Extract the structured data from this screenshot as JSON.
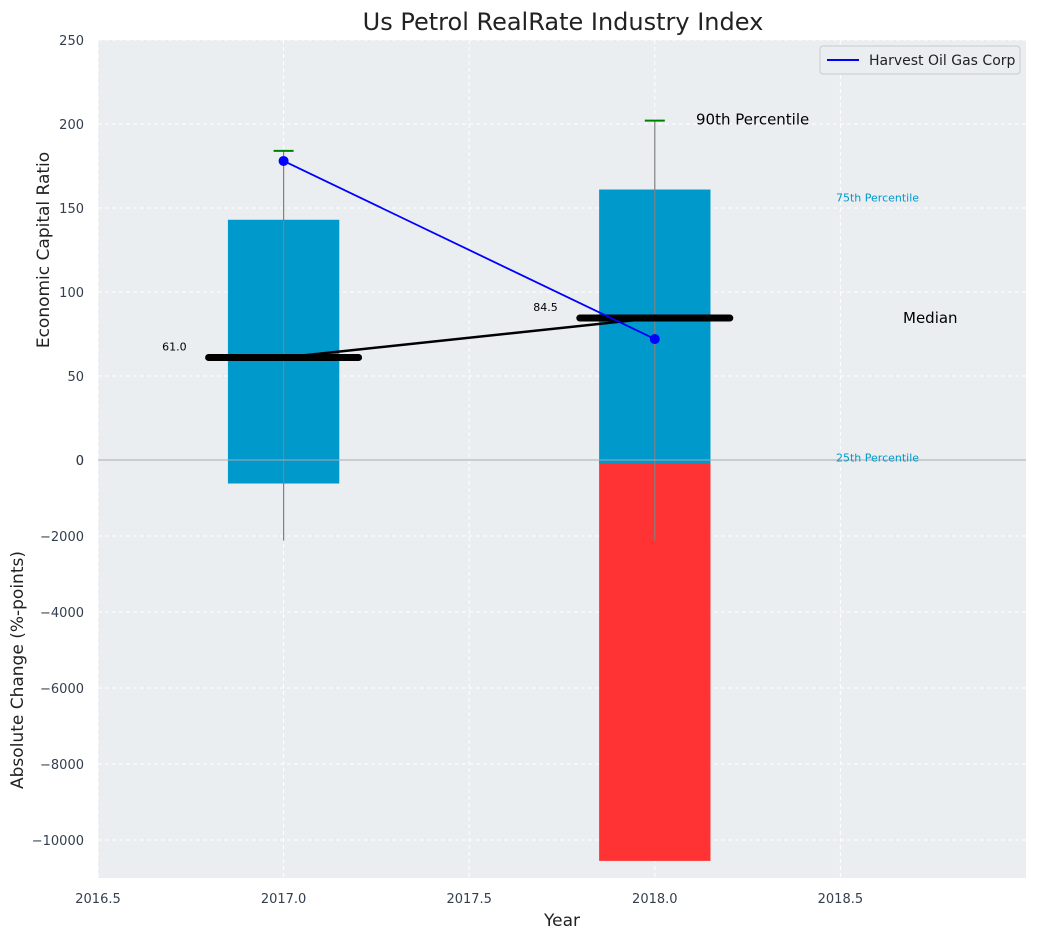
{
  "chart_data": {
    "type": "bar",
    "title": "Us Petrol RealRate Industry Index",
    "xlabel": "Year",
    "x_ticks": [
      "2016.5",
      "2017.0",
      "2017.5",
      "2018.0",
      "2018.5"
    ],
    "xlim": [
      2016.5,
      2019.0
    ],
    "top_panel": {
      "ylabel": "Economic Capital Ratio",
      "ylim": [
        0,
        250
      ],
      "y_ticks": [
        "0",
        "50",
        "100",
        "150",
        "200",
        "250"
      ],
      "y_tick_values": [
        0,
        50,
        100,
        150,
        200,
        250
      ],
      "zero_label": "0",
      "box_color": "#0099cc",
      "percentile_boxes": [
        {
          "x": 2017.0,
          "p25": -14,
          "p75": 143,
          "p90": 184,
          "whisker_low": -48
        },
        {
          "x": 2018.0,
          "p25": -2,
          "p75": 161,
          "p90": 202,
          "whisker_low": -48
        }
      ],
      "median_series": {
        "color": "#000000",
        "x": [
          2017.0,
          2018.0
        ],
        "values": [
          61.0,
          84.5
        ],
        "labels": [
          "61.0",
          "84.5"
        ]
      },
      "company_series": {
        "name": "Harvest Oil Gas Corp",
        "color": "#0000ff",
        "x": [
          2017.0,
          2018.0
        ],
        "values": [
          178,
          72
        ]
      },
      "annotations": {
        "p90": "90th Percentile",
        "p75": "75th Percentile",
        "median": "Median",
        "p25": "25th Percentile"
      }
    },
    "bottom_panel": {
      "ylabel": "Absolute Change (%-points)",
      "ylim": [
        -11000,
        0
      ],
      "y_ticks": [
        "−10000",
        "−8000",
        "−6000",
        "−4000",
        "−2000"
      ],
      "y_tick_values": [
        -10000,
        -8000,
        -6000,
        -4000,
        -2000
      ],
      "bar_color": "#ff3333",
      "bars": [
        {
          "x": 2018.0,
          "value": -10550
        }
      ]
    },
    "legend": {
      "position": "top-right",
      "entries": [
        "Harvest Oil Gas Corp"
      ]
    }
  }
}
